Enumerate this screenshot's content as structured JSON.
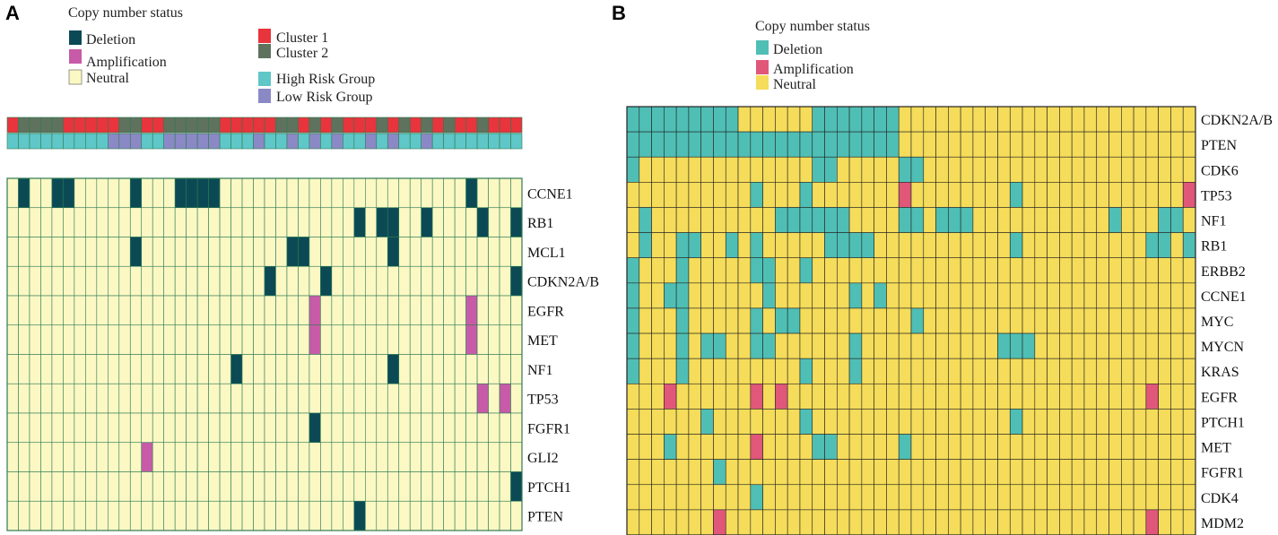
{
  "chart_data": [
    {
      "type": "heatmap",
      "panel_label": "A",
      "legend_title": "Copy number status",
      "status_labels": [
        "Deletion",
        "Amplification",
        "Neutral"
      ],
      "colors": {
        "Deletion": "#0b4a55",
        "Amplification": "#c75ba8",
        "Neutral": "#fbf8c4",
        "grid": "#2f7a52"
      },
      "annotation_legends": [
        {
          "labels": [
            "Cluster 1",
            "Cluster 2"
          ],
          "colors": [
            "#e8343c",
            "#5e725e"
          ]
        },
        {
          "labels": [
            "High Risk Group",
            "Low Risk Group"
          ],
          "colors": [
            "#5fc7c8",
            "#8b89c5"
          ]
        }
      ],
      "n_samples": 46,
      "cluster_track": [
        1,
        2,
        2,
        2,
        2,
        1,
        1,
        1,
        1,
        1,
        2,
        2,
        1,
        1,
        2,
        2,
        2,
        2,
        2,
        1,
        1,
        1,
        1,
        1,
        2,
        2,
        1,
        2,
        1,
        2,
        1,
        1,
        1,
        2,
        1,
        2,
        1,
        2,
        1,
        2,
        1,
        1,
        2,
        1,
        1,
        1
      ],
      "risk_track": [
        "H",
        "H",
        "H",
        "H",
        "H",
        "H",
        "H",
        "H",
        "H",
        "L",
        "L",
        "L",
        "H",
        "H",
        "L",
        "L",
        "L",
        "L",
        "L",
        "H",
        "H",
        "H",
        "L",
        "H",
        "H",
        "L",
        "H",
        "L",
        "H",
        "L",
        "H",
        "H",
        "L",
        "H",
        "L",
        "H",
        "H",
        "L",
        "H",
        "H",
        "H",
        "H",
        "H",
        "H",
        "H",
        "H"
      ],
      "genes": [
        "CCNE1",
        "RB1",
        "MCL1",
        "CDKN2A/B",
        "EGFR",
        "MET",
        "NF1",
        "TP53",
        "FGFR1",
        "GLI2",
        "PTCH1",
        "PTEN"
      ],
      "deletions": [
        [
          1,
          4,
          5,
          11,
          15,
          16,
          17,
          18,
          41
        ],
        [
          31,
          33,
          34,
          37,
          42,
          45
        ],
        [
          11,
          25,
          26,
          34
        ],
        [
          23,
          28,
          45
        ],
        [],
        [],
        [
          20,
          34
        ],
        [],
        [
          27
        ],
        [],
        [
          45
        ],
        [
          31
        ]
      ],
      "amplifications": [
        [],
        [],
        [],
        [],
        [
          27,
          41
        ],
        [
          27,
          41
        ],
        [],
        [
          42,
          44
        ],
        [],
        [
          12
        ],
        [],
        []
      ]
    },
    {
      "type": "heatmap",
      "panel_label": "B",
      "legend_title": "Copy number status",
      "status_labels": [
        "Deletion",
        "Amplification",
        "Neutral"
      ],
      "colors": {
        "Deletion": "#4fbfb5",
        "Amplification": "#e0577a",
        "Neutral": "#f5dc5a",
        "grid": "#222222"
      },
      "n_samples": 46,
      "genes": [
        "CDKN2A/B",
        "PTEN",
        "CDK6",
        "TP53",
        "NF1",
        "RB1",
        "ERBB2",
        "CCNE1",
        "MYC",
        "MYCN",
        "KRAS",
        "EGFR",
        "PTCH1",
        "MET",
        "FGFR1",
        "CDK4",
        "MDM2"
      ],
      "deletions": [
        [
          0,
          1,
          2,
          3,
          4,
          5,
          6,
          7,
          8,
          15,
          16,
          17,
          18,
          19,
          20,
          21
        ],
        [
          0,
          1,
          2,
          3,
          4,
          5,
          6,
          7,
          8,
          9,
          10,
          11,
          12,
          13,
          14,
          15,
          16,
          17,
          18,
          19,
          20,
          21
        ],
        [
          0,
          15,
          16,
          22,
          23
        ],
        [
          10,
          14,
          31
        ],
        [
          1,
          12,
          13,
          14,
          15,
          16,
          17,
          22,
          23,
          25,
          26,
          27,
          39,
          43,
          44
        ],
        [
          1,
          4,
          5,
          8,
          10,
          16,
          17,
          18,
          19,
          31,
          42,
          43,
          45
        ],
        [
          0,
          4,
          10,
          11,
          14
        ],
        [
          0,
          3,
          4,
          11,
          18,
          20
        ],
        [
          0,
          4,
          10,
          12,
          13,
          23
        ],
        [
          0,
          4,
          6,
          7,
          10,
          11,
          18,
          30,
          31,
          32
        ],
        [
          0,
          4,
          14,
          18
        ],
        [],
        [
          6,
          14,
          31
        ],
        [
          3,
          15,
          16,
          22
        ],
        [
          7
        ],
        [
          10
        ],
        []
      ],
      "amplifications": [
        [],
        [],
        [],
        [
          22,
          45
        ],
        [],
        [],
        [],
        [],
        [],
        [],
        [],
        [
          3,
          10,
          12,
          42
        ],
        [],
        [
          10
        ],
        [],
        [],
        [
          7,
          42
        ]
      ]
    }
  ]
}
